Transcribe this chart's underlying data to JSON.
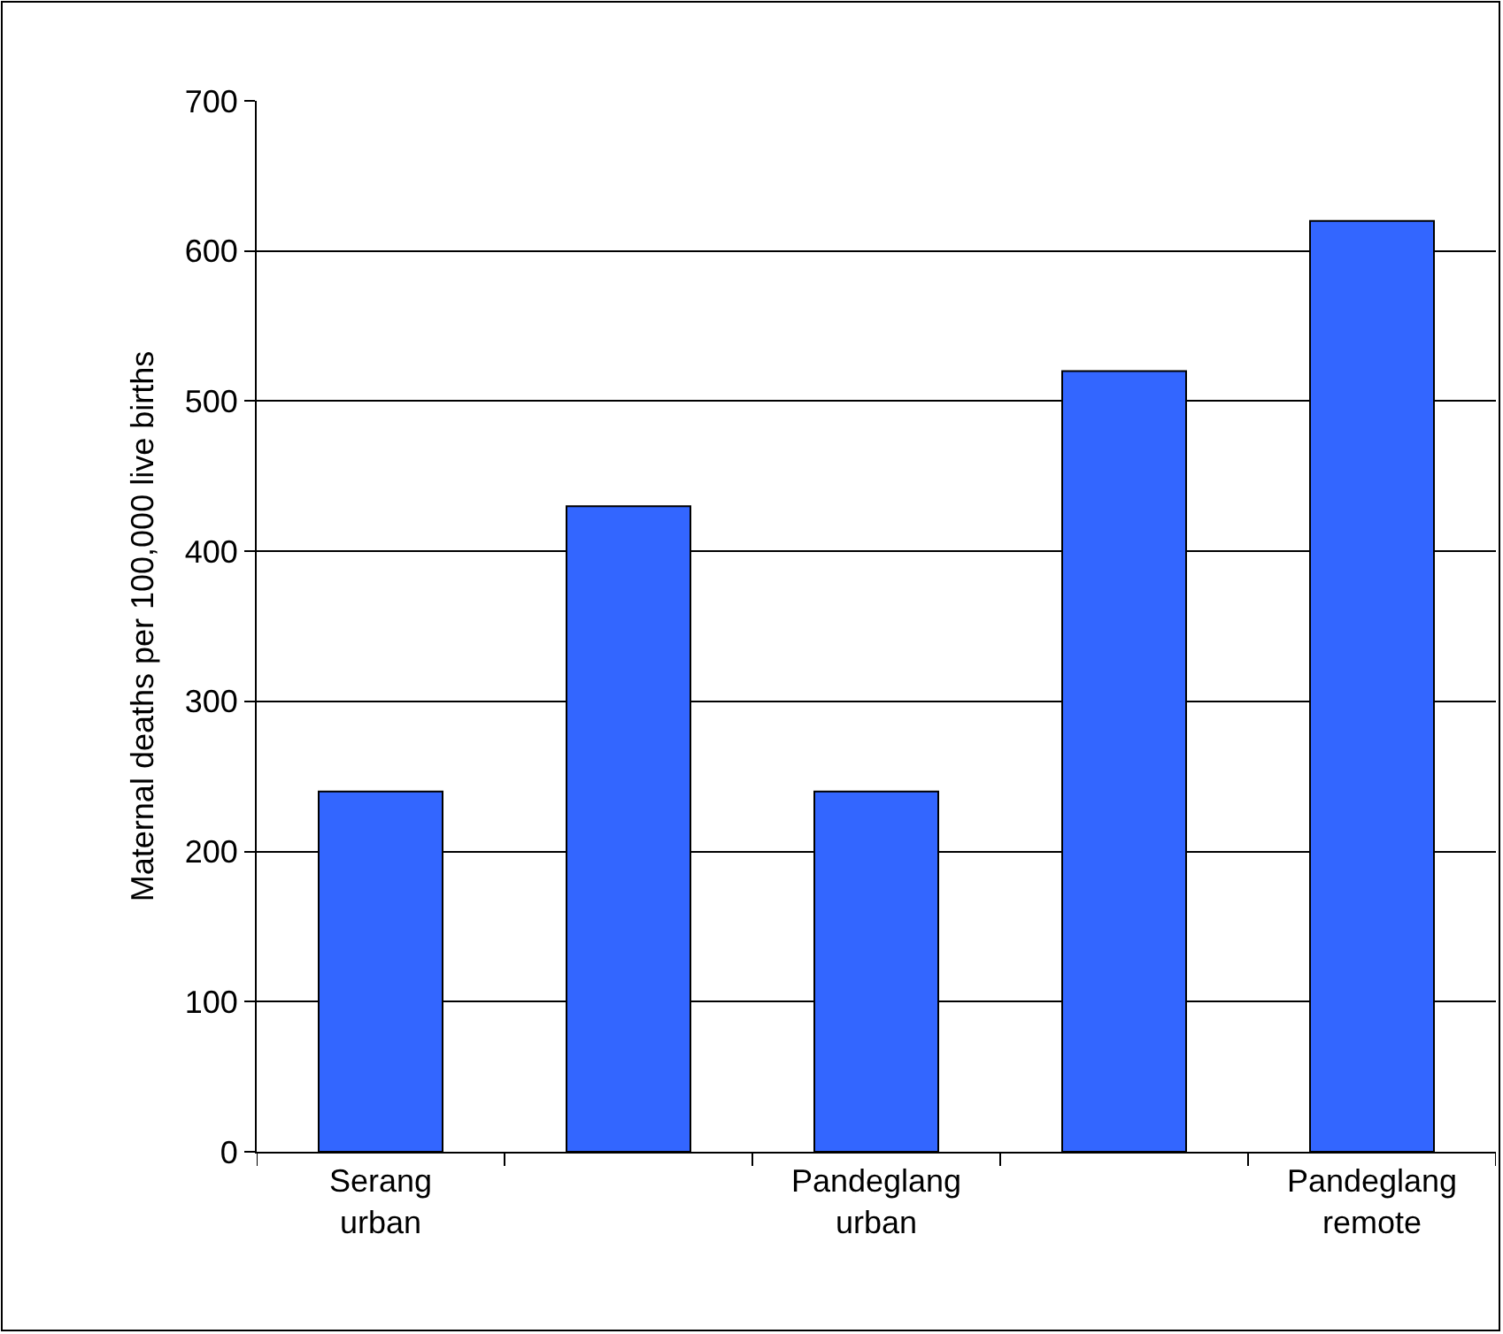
{
  "chart_data": {
    "type": "bar",
    "ylabel": "Maternal deaths per 100,000 live births",
    "categories": [
      "Serang urban",
      null,
      "Pandeglang urban",
      null,
      "Pandeglang remote"
    ],
    "values": [
      240,
      430,
      240,
      520,
      620
    ],
    "color": "#3366ff",
    "ylim": [
      0,
      700
    ],
    "yticks": [
      0,
      100,
      200,
      300,
      400,
      500,
      600,
      700
    ],
    "grid": "y"
  }
}
